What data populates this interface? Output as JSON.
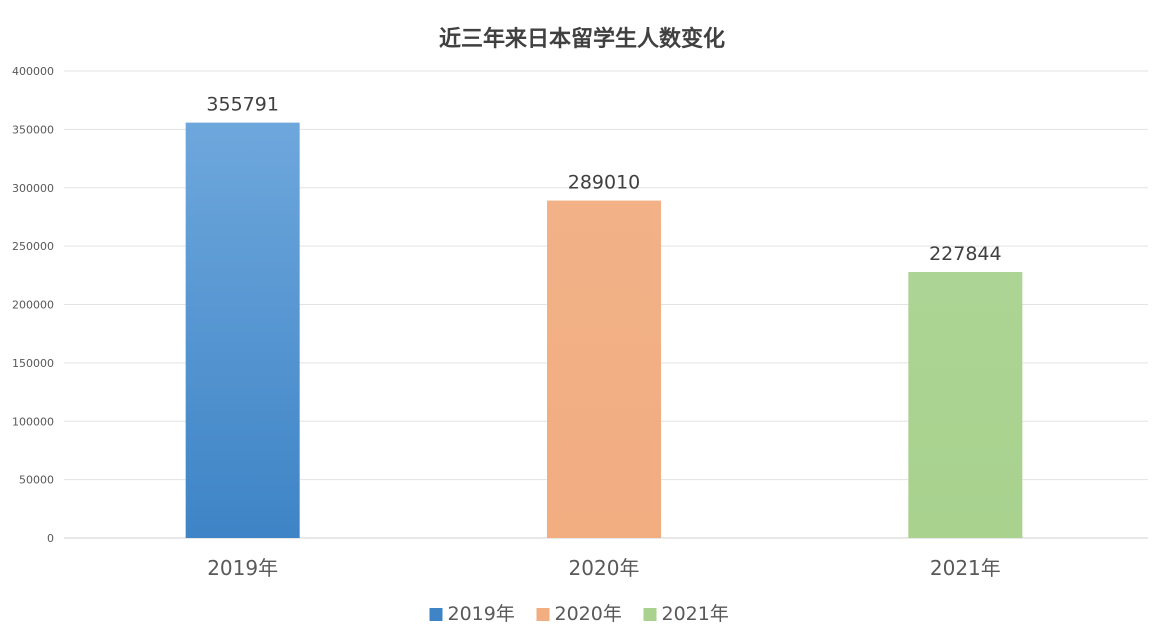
{
  "chart_data": {
    "type": "bar",
    "title": "近三年来日本留学生人数变化",
    "xlabel": "",
    "ylabel": "",
    "categories": [
      "2019年",
      "2020年",
      "2021年"
    ],
    "values": [
      355791,
      289010,
      227844
    ],
    "data_labels": [
      "355791",
      "289010",
      "227844"
    ],
    "ylim": [
      0,
      400000
    ],
    "yticks": [
      "0",
      "50000",
      "100000",
      "150000",
      "200000",
      "250000",
      "300000",
      "350000",
      "400000"
    ],
    "grid": true,
    "legend_position": "bottom",
    "legend": [
      "2019年",
      "2020年",
      "2021年"
    ],
    "colors": {
      "bar_top": [
        "#6ea7dc",
        "#f2b187",
        "#acd494"
      ],
      "bar_bottom": [
        "#3e84c6",
        "#f2ad81",
        "#a8d28e"
      ],
      "grid": "#e3e3e3",
      "axis_text": "#595959",
      "title": "#404040"
    }
  }
}
